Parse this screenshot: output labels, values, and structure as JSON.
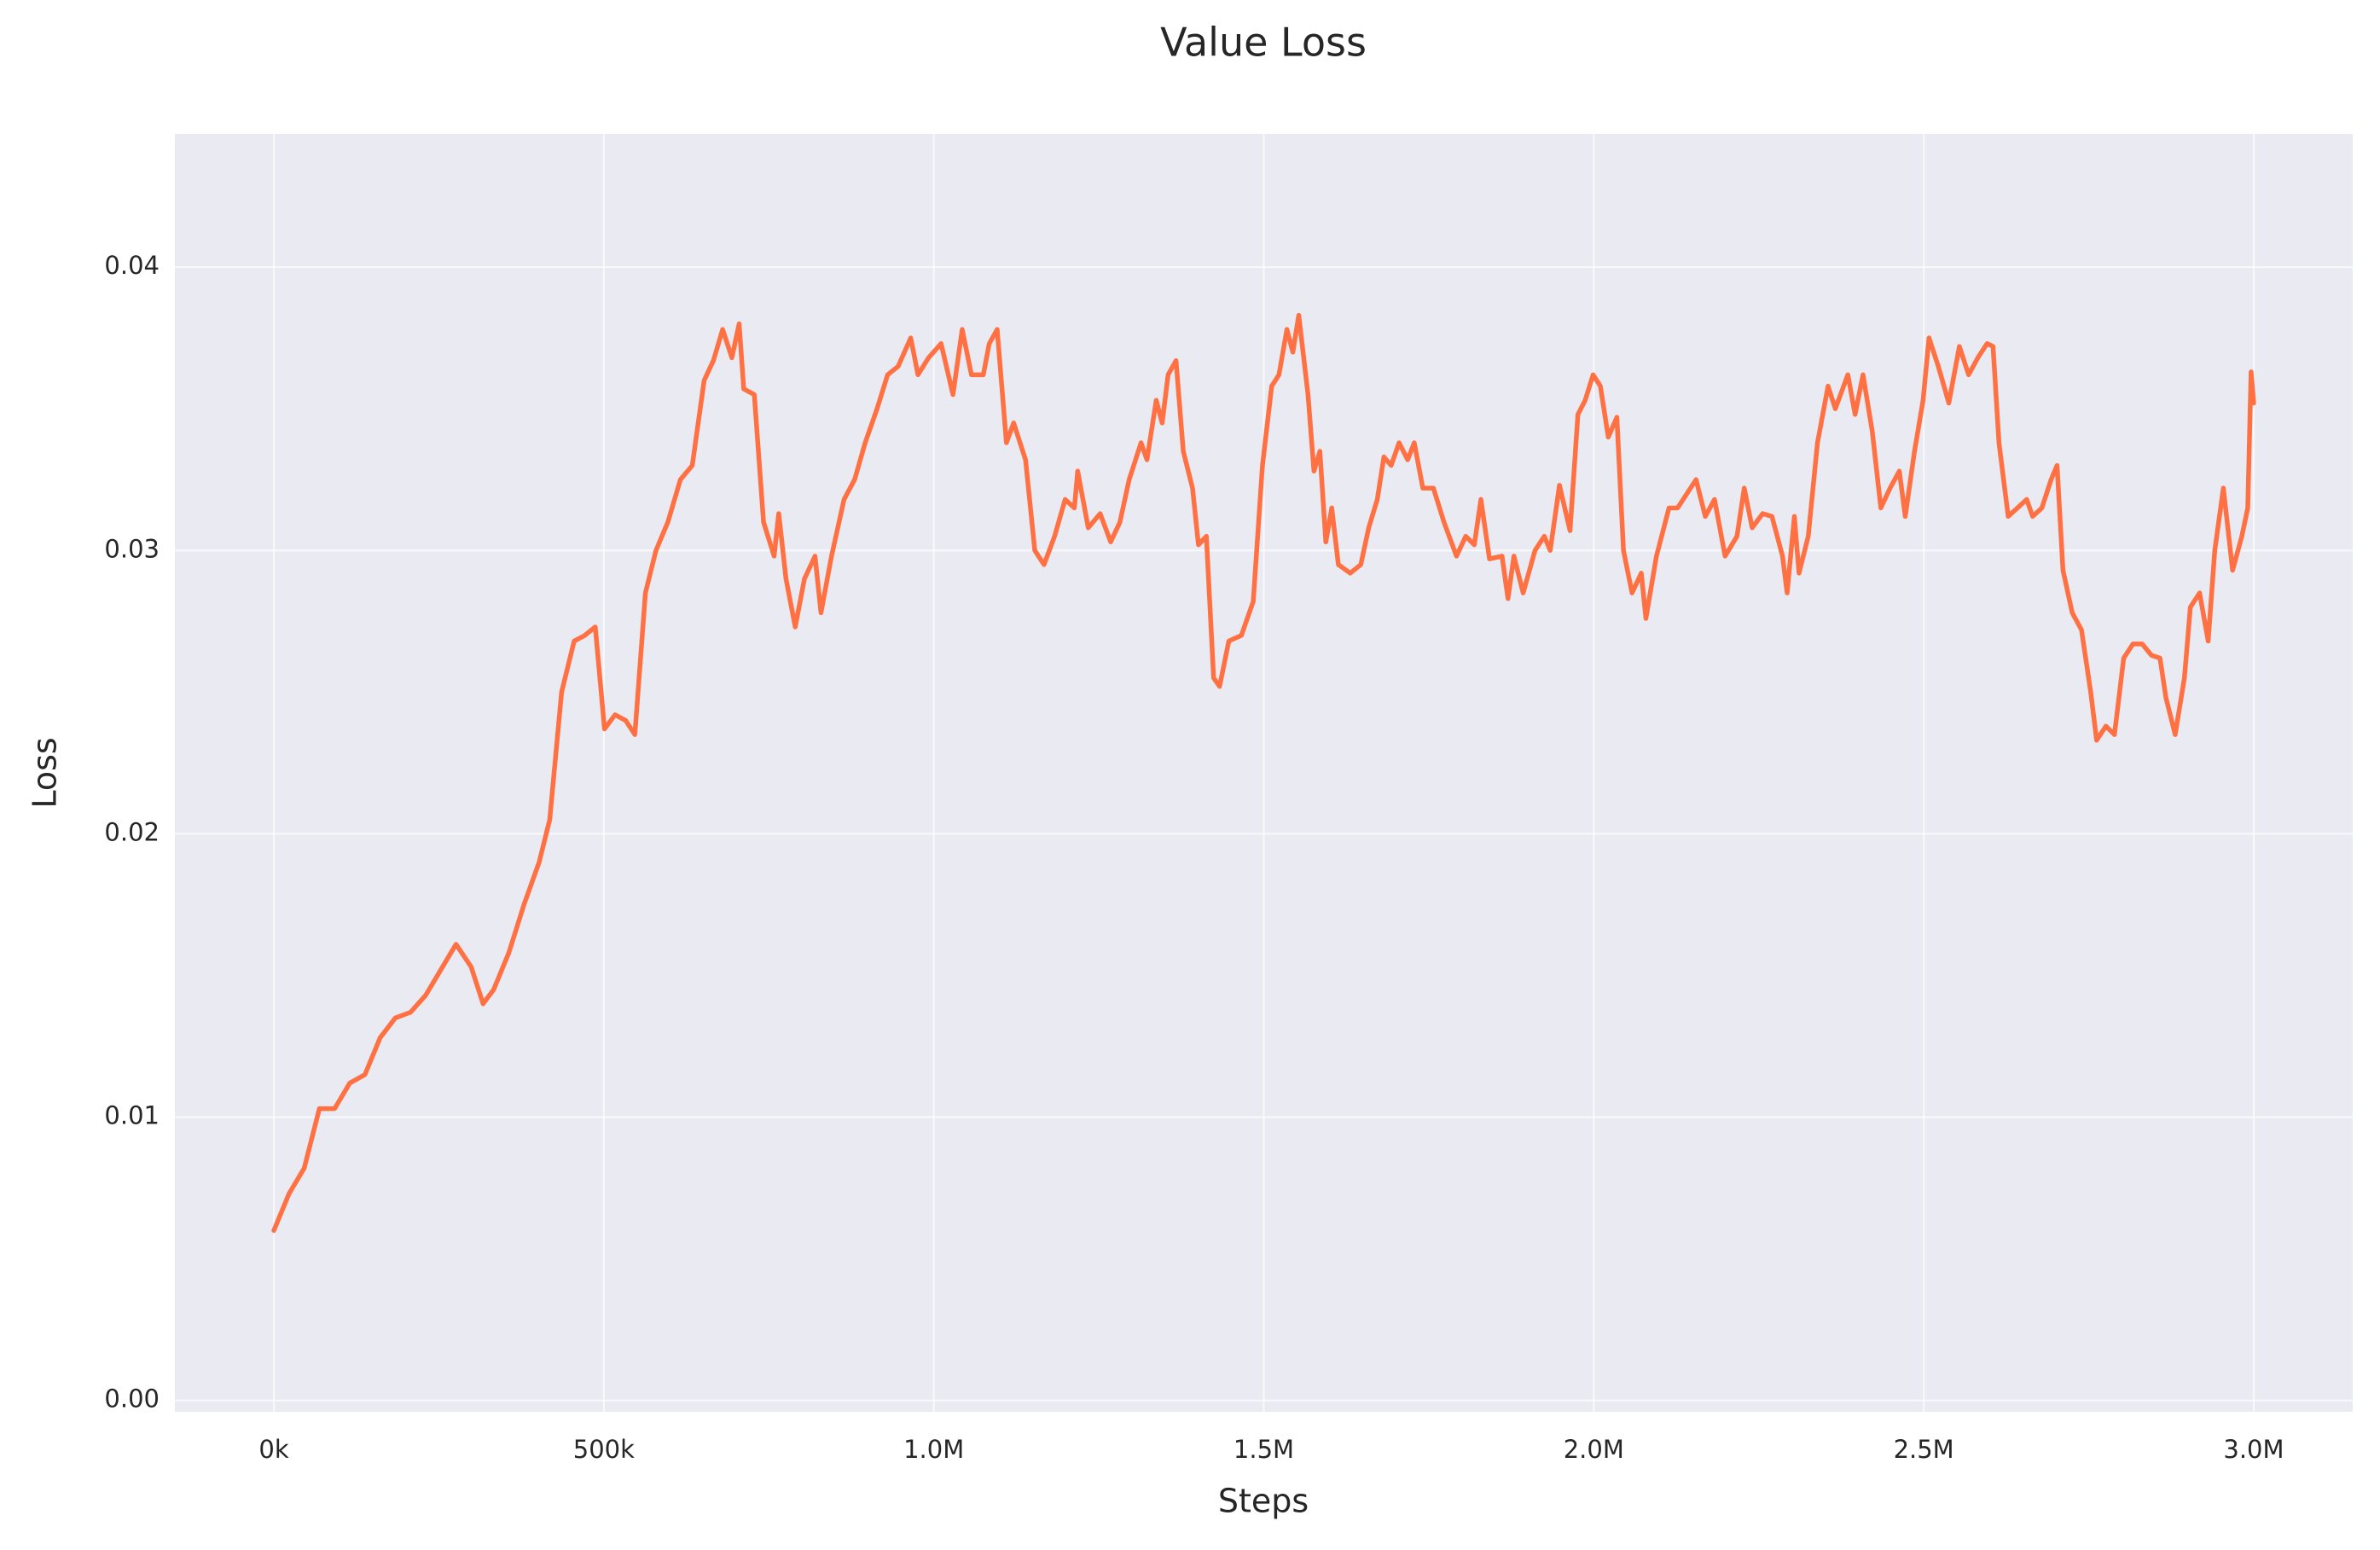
{
  "chart_data": {
    "type": "line",
    "title": "Value Loss",
    "x_label": "Steps",
    "y_label": "Loss",
    "series": [
      {
        "name": "Value Loss",
        "color": "#ff7043",
        "x": [
          0,
          23000,
          46000,
          69000,
          92000,
          115000,
          138000,
          161000,
          184000,
          207000,
          230000,
          253000,
          276000,
          299000,
          317000,
          333000,
          356000,
          379000,
          402000,
          418000,
          436000,
          455000,
          471000,
          487000,
          501000,
          517000,
          533000,
          547000,
          563000,
          579000,
          597000,
          616000,
          634000,
          652000,
          666000,
          680000,
          694000,
          705000,
          712000,
          728000,
          742000,
          758000,
          765000,
          776000,
          790000,
          804000,
          820000,
          829000,
          845000,
          864000,
          880000,
          896000,
          914000,
          930000,
          946000,
          965000,
          976000,
          992000,
          1011000,
          1029000,
          1043000,
          1057000,
          1075000,
          1084000,
          1096000,
          1110000,
          1121000,
          1139000,
          1153000,
          1167000,
          1183000,
          1199000,
          1213000,
          1218000,
          1234000,
          1252000,
          1268000,
          1282000,
          1296000,
          1314000,
          1323000,
          1337000,
          1346000,
          1355000,
          1367000,
          1378000,
          1392000,
          1401000,
          1413000,
          1424000,
          1433000,
          1447000,
          1466000,
          1484000,
          1498000,
          1512000,
          1523000,
          1535000,
          1544000,
          1553000,
          1567000,
          1576000,
          1585000,
          1594000,
          1603000,
          1613000,
          1631000,
          1647000,
          1659000,
          1672000,
          1682000,
          1693000,
          1705000,
          1718000,
          1728000,
          1741000,
          1757000,
          1773000,
          1792000,
          1806000,
          1819000,
          1829000,
          1842000,
          1861000,
          1870000,
          1879000,
          1893000,
          1911000,
          1925000,
          1934000,
          1948000,
          1964000,
          1976000,
          1987000,
          1999000,
          2010000,
          2022000,
          2035000,
          2045000,
          2058000,
          2072000,
          2079000,
          2095000,
          2114000,
          2127000,
          2141000,
          2155000,
          2169000,
          2183000,
          2199000,
          2217000,
          2228000,
          2240000,
          2256000,
          2270000,
          2286000,
          2293000,
          2304000,
          2311000,
          2325000,
          2339000,
          2355000,
          2366000,
          2385000,
          2396000,
          2408000,
          2422000,
          2435000,
          2449000,
          2463000,
          2472000,
          2486000,
          2499000,
          2508000,
          2522000,
          2538000,
          2554000,
          2568000,
          2582000,
          2596000,
          2605000,
          2614000,
          2628000,
          2642000,
          2656000,
          2665000,
          2679000,
          2693000,
          2702000,
          2711000,
          2725000,
          2739000,
          2753000,
          2762000,
          2776000,
          2789000,
          2803000,
          2817000,
          2831000,
          2845000,
          2858000,
          2867000,
          2881000,
          2895000,
          2904000,
          2918000,
          2931000,
          2941000,
          2954000,
          2968000,
          2982000,
          2991000,
          2996000,
          3000000
        ],
        "values": [
          0.006,
          0.0073,
          0.0082,
          0.0103,
          0.0103,
          0.0112,
          0.0115,
          0.0128,
          0.0135,
          0.0137,
          0.0143,
          0.0152,
          0.0161,
          0.0153,
          0.014,
          0.0145,
          0.0158,
          0.0175,
          0.019,
          0.0205,
          0.025,
          0.0268,
          0.027,
          0.0273,
          0.0237,
          0.0242,
          0.024,
          0.0235,
          0.0285,
          0.03,
          0.031,
          0.0325,
          0.033,
          0.036,
          0.0367,
          0.0378,
          0.0368,
          0.038,
          0.0357,
          0.0355,
          0.031,
          0.0298,
          0.0313,
          0.029,
          0.0273,
          0.029,
          0.0298,
          0.0278,
          0.0298,
          0.0318,
          0.0325,
          0.0338,
          0.035,
          0.0362,
          0.0365,
          0.0375,
          0.0362,
          0.0368,
          0.0373,
          0.0355,
          0.0378,
          0.0362,
          0.0362,
          0.0373,
          0.0378,
          0.0338,
          0.0345,
          0.0332,
          0.03,
          0.0295,
          0.0305,
          0.0318,
          0.0315,
          0.0328,
          0.0308,
          0.0313,
          0.0303,
          0.031,
          0.0325,
          0.0338,
          0.0332,
          0.0353,
          0.0345,
          0.0362,
          0.0367,
          0.0335,
          0.0322,
          0.0302,
          0.0305,
          0.0255,
          0.0252,
          0.0268,
          0.027,
          0.0282,
          0.033,
          0.0358,
          0.0362,
          0.0378,
          0.037,
          0.0383,
          0.0355,
          0.0328,
          0.0335,
          0.0303,
          0.0315,
          0.0295,
          0.0292,
          0.0295,
          0.0308,
          0.0318,
          0.0333,
          0.033,
          0.0338,
          0.0332,
          0.0338,
          0.0322,
          0.0322,
          0.031,
          0.0298,
          0.0305,
          0.0302,
          0.0318,
          0.0297,
          0.0298,
          0.0283,
          0.0298,
          0.0285,
          0.03,
          0.0305,
          0.03,
          0.0323,
          0.0307,
          0.0348,
          0.0353,
          0.0362,
          0.0358,
          0.034,
          0.0347,
          0.03,
          0.0285,
          0.0292,
          0.0276,
          0.0298,
          0.0315,
          0.0315,
          0.032,
          0.0325,
          0.0312,
          0.0318,
          0.0298,
          0.0305,
          0.0322,
          0.0308,
          0.0313,
          0.0312,
          0.0298,
          0.0285,
          0.0312,
          0.0292,
          0.0305,
          0.0338,
          0.0358,
          0.035,
          0.0362,
          0.0348,
          0.0362,
          0.0342,
          0.0315,
          0.0322,
          0.0328,
          0.0312,
          0.0335,
          0.0353,
          0.0375,
          0.0365,
          0.0352,
          0.0372,
          0.0362,
          0.0368,
          0.0373,
          0.0372,
          0.0338,
          0.0312,
          0.0315,
          0.0318,
          0.0312,
          0.0315,
          0.0325,
          0.033,
          0.0293,
          0.0278,
          0.0272,
          0.025,
          0.0233,
          0.0238,
          0.0235,
          0.0262,
          0.0267,
          0.0267,
          0.0263,
          0.0262,
          0.0248,
          0.0235,
          0.0255,
          0.028,
          0.0285,
          0.0268,
          0.03,
          0.0322,
          0.0293,
          0.0305,
          0.0315,
          0.0363,
          0.0352
        ]
      }
    ],
    "xlim": [
      -150000,
      3150000
    ],
    "xticks": [
      {
        "value": 0,
        "label": "0k"
      },
      {
        "value": 500000,
        "label": "500k"
      },
      {
        "value": 1000000,
        "label": "1.0M"
      },
      {
        "value": 1500000,
        "label": "1.5M"
      },
      {
        "value": 2000000,
        "label": "2.0M"
      },
      {
        "value": 2500000,
        "label": "2.5M"
      },
      {
        "value": 3000000,
        "label": "3.0M"
      }
    ],
    "ylim": [
      -0.0004,
      0.0447
    ],
    "yticks": [
      {
        "value": 0,
        "label": "0.00"
      },
      0.01,
      0.02,
      0.03,
      0.04
    ],
    "grid": true
  }
}
